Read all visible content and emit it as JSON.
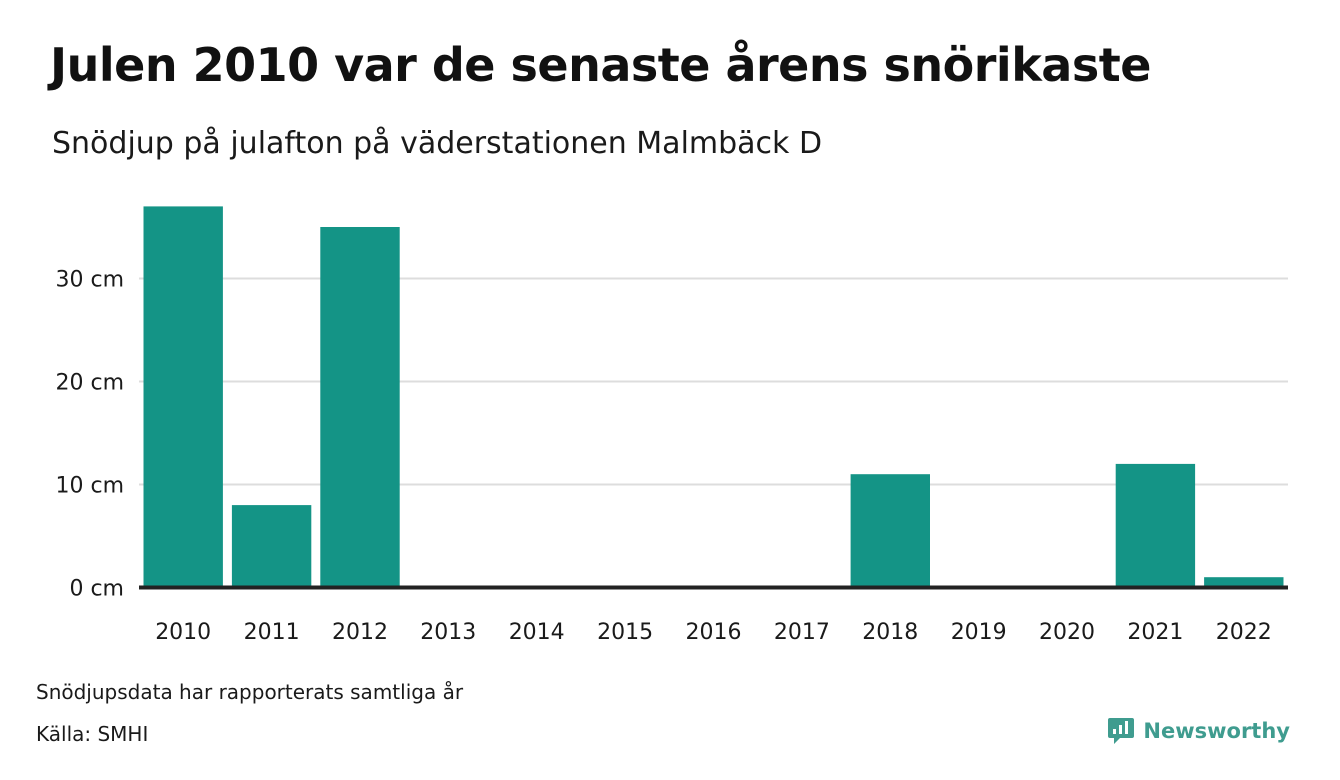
{
  "header": {
    "title": "Julen 2010 var de senaste årens snörikaste",
    "subtitle": "Snödjup på julafton på väderstationen Malmbäck D"
  },
  "footer": {
    "note": "Snödjupsdata har rapporterats samtliga år",
    "source": "Källa: SMHI",
    "brand": "Newsworthy",
    "brand_icon": "newsworthy-logo-icon",
    "brand_color": "#3f9c8f"
  },
  "colors": {
    "bar": "#149486",
    "grid": "#dddddd",
    "baseline": "#222222"
  },
  "chart_data": {
    "type": "bar",
    "categories": [
      "2010",
      "2011",
      "2012",
      "2013",
      "2014",
      "2015",
      "2016",
      "2017",
      "2018",
      "2019",
      "2020",
      "2021",
      "2022"
    ],
    "values": [
      37,
      8,
      35,
      0,
      0,
      0,
      0,
      0,
      11,
      0,
      0,
      12,
      1
    ],
    "unit": "cm",
    "yticks": [
      "0 cm",
      "10 cm",
      "20 cm",
      "30 cm"
    ],
    "ytick_values": [
      0,
      10,
      20,
      30
    ],
    "ylim": [
      0,
      37
    ],
    "grid": true,
    "legend": false
  }
}
